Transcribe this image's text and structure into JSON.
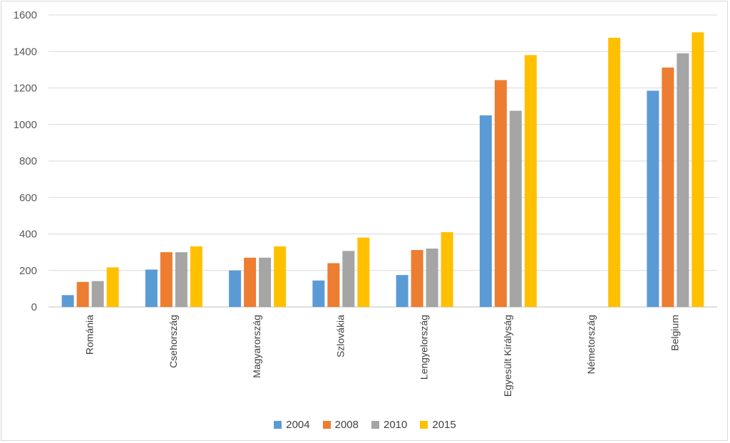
{
  "chart_data": {
    "type": "bar",
    "title": "",
    "xlabel": "",
    "ylabel": "",
    "ylim": [
      0,
      1600
    ],
    "yticks": [
      0,
      200,
      400,
      600,
      800,
      1000,
      1200,
      1400,
      1600
    ],
    "grid": true,
    "legend_position": "bottom",
    "categories": [
      "Románia",
      "Csehország",
      "Magyarország",
      "Szlovákia",
      "Lengyelország",
      "Egyesült Királyság",
      "Németország",
      "Belgium"
    ],
    "series": [
      {
        "name": "2004",
        "color": "#5b9bd5",
        "values": [
          65,
          205,
          200,
          145,
          175,
          1050,
          null,
          1185
        ]
      },
      {
        "name": "2008",
        "color": "#ed7d31",
        "values": [
          137,
          300,
          270,
          240,
          312,
          1243,
          null,
          1312
        ]
      },
      {
        "name": "2010",
        "color": "#a5a5a5",
        "values": [
          142,
          300,
          270,
          307,
          320,
          1075,
          null,
          1390
        ]
      },
      {
        "name": "2015",
        "color": "#ffc000",
        "values": [
          217,
          332,
          332,
          380,
          410,
          1380,
          1475,
          1505
        ]
      }
    ]
  }
}
